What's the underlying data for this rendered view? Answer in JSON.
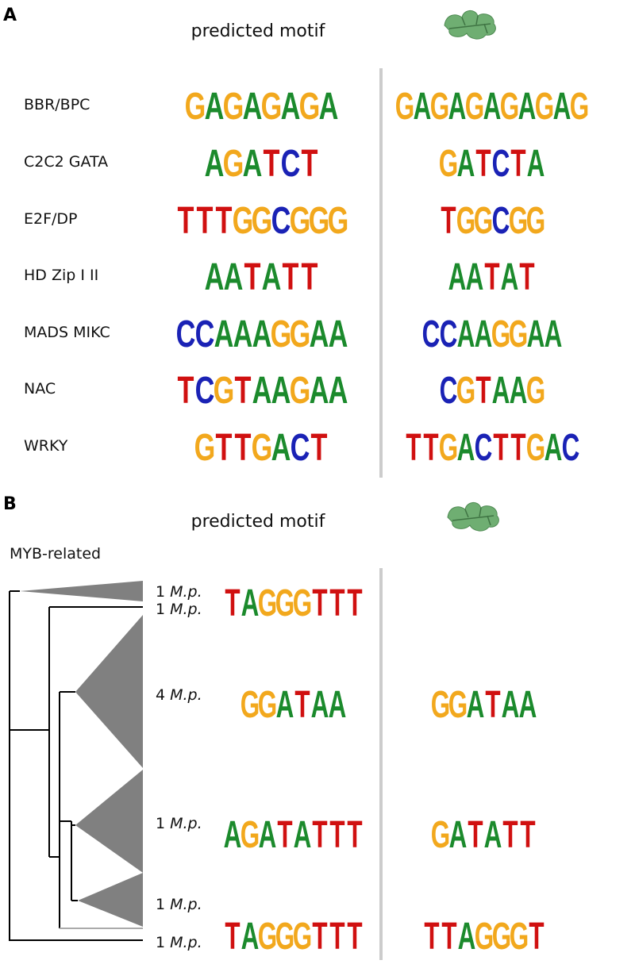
{
  "panel_a": {
    "label": "A",
    "header": "predicted motif",
    "rows": [
      {
        "name": "BBR/BPC",
        "motif": [
          "G",
          "A",
          "G",
          "A",
          "G",
          "A",
          "G",
          "A"
        ],
        "plant": [
          "G",
          "A",
          "G",
          "A",
          "G",
          "A",
          "G",
          "A",
          "G",
          "A",
          "G"
        ]
      },
      {
        "name": "C2C2 GATA",
        "motif": [
          "A",
          "G",
          "A",
          "T",
          "C",
          "T"
        ],
        "plant": [
          "G",
          "A",
          "T",
          "C",
          "T",
          "A"
        ]
      },
      {
        "name": "E2F/DP",
        "motif": [
          "T",
          "T",
          "T",
          "G",
          "G",
          "C",
          "G",
          "G",
          "G"
        ],
        "plant": [
          "T",
          "G",
          "G",
          "C",
          "G",
          "G"
        ]
      },
      {
        "name": "HD Zip I II",
        "motif": [
          "A",
          "A",
          "T",
          "A",
          "T",
          "T"
        ],
        "plant": [
          "A",
          "A",
          "T",
          "A",
          "T"
        ]
      },
      {
        "name": "MADS MIKC",
        "motif": [
          "C",
          "C",
          "A",
          "A",
          "A",
          "G",
          "G",
          "A",
          "A"
        ],
        "plant": [
          "C",
          "C",
          "A",
          "A",
          "G",
          "G",
          "A",
          "A"
        ]
      },
      {
        "name": "NAC",
        "motif": [
          "T",
          "C",
          "G",
          "T",
          "A",
          "A",
          "G",
          "A",
          "A"
        ],
        "plant": [
          "C",
          "G",
          "T",
          "A",
          "A",
          "G"
        ]
      },
      {
        "name": "WRKY",
        "motif": [
          "G",
          "T",
          "T",
          "G",
          "A",
          "C",
          "T"
        ],
        "plant": [
          "T",
          "T",
          "G",
          "A",
          "C",
          "T",
          "T",
          "G",
          "A",
          "C"
        ]
      }
    ]
  },
  "panel_b": {
    "label": "B",
    "header": "predicted motif",
    "family": "MYB-related",
    "clades": [
      {
        "count": "1",
        "species": "M.p."
      },
      {
        "count": "1",
        "species": "M.p."
      },
      {
        "count": "4",
        "species": "M.p."
      },
      {
        "count": "1",
        "species": "M.p."
      },
      {
        "count": "1",
        "species": "M.p."
      },
      {
        "count": "1",
        "species": "M.p."
      }
    ],
    "logos": [
      {
        "motif": [
          "T",
          "A",
          "G",
          "G",
          "G",
          "T",
          "T",
          "T"
        ],
        "plant": null
      },
      {
        "motif": [
          "G",
          "G",
          "A",
          "T",
          "A",
          "A"
        ],
        "plant": [
          "G",
          "G",
          "A",
          "T",
          "A",
          "A"
        ]
      },
      {
        "motif": [
          "A",
          "G",
          "A",
          "T",
          "A",
          "T",
          "T",
          "T"
        ],
        "plant": [
          "G",
          "A",
          "T",
          "A",
          "T",
          "T"
        ]
      },
      {
        "motif": [
          "T",
          "A",
          "G",
          "G",
          "G",
          "T",
          "T",
          "T"
        ],
        "plant": [
          "T",
          "T",
          "A",
          "G",
          "G",
          "G",
          "T"
        ]
      }
    ]
  }
}
